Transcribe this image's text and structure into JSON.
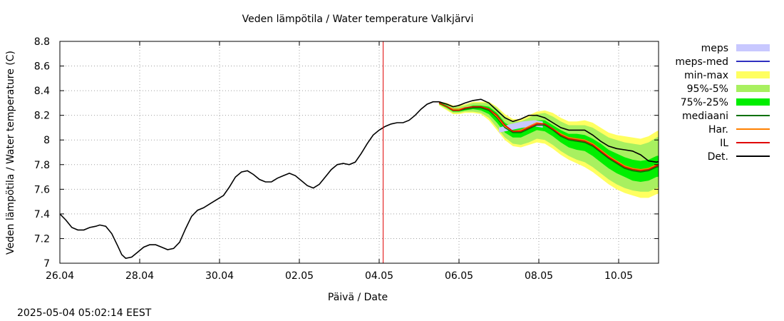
{
  "title": "Veden lämpötila / Water temperature Valkjärvi",
  "xlabel": "Päivä / Date",
  "ylabel": "Veden lämpötila / Water temperature (C)",
  "timestamp": "2025-05-04 05:02:14 EEST",
  "chart_data": {
    "type": "line",
    "title": "Veden lämpötila / Water temperature Valkjärvi",
    "xlabel": "Päivä / Date",
    "ylabel": "Veden lämpötila / Water temperature (C)",
    "x_unit": "days since 26.04 00:00",
    "xlim": [
      0,
      15
    ],
    "ylim": [
      7.0,
      8.8
    ],
    "grid": true,
    "legend_position": "right",
    "forecast_marker_x": 8.1,
    "x_ticks": [
      {
        "x": 0,
        "label": "26.04"
      },
      {
        "x": 2,
        "label": "28.04"
      },
      {
        "x": 4,
        "label": "30.04"
      },
      {
        "x": 6,
        "label": "02.05"
      },
      {
        "x": 8,
        "label": "04.05"
      },
      {
        "x": 10,
        "label": "06.05"
      },
      {
        "x": 12,
        "label": "08.05"
      },
      {
        "x": 14,
        "label": "10.05"
      }
    ],
    "y_ticks": [
      {
        "y": 7.0,
        "label": "7"
      },
      {
        "y": 7.2,
        "label": "7.2"
      },
      {
        "y": 7.4,
        "label": "7.4"
      },
      {
        "y": 7.6,
        "label": "7.6"
      },
      {
        "y": 7.8,
        "label": "7.8"
      },
      {
        "y": 8.0,
        "label": "8"
      },
      {
        "y": 8.2,
        "label": "8.2"
      },
      {
        "y": 8.4,
        "label": "8.4"
      },
      {
        "y": 8.6,
        "label": "8.6"
      },
      {
        "y": 8.8,
        "label": "8.8"
      }
    ],
    "legend": [
      {
        "label": "meps",
        "color": "#c8c8ff",
        "kind": "band"
      },
      {
        "label": "meps-med",
        "color": "#3030c0",
        "kind": "line"
      },
      {
        "label": "min-max",
        "color": "#ffff60",
        "kind": "band"
      },
      {
        "label": "95%-5%",
        "color": "#a8f060",
        "kind": "band"
      },
      {
        "label": "75%-25%",
        "color": "#00ee00",
        "kind": "band"
      },
      {
        "label": "mediaani",
        "color": "#007000",
        "kind": "line"
      },
      {
        "label": "Har.",
        "color": "#ff8000",
        "kind": "line"
      },
      {
        "label": "IL",
        "color": "#e00000",
        "kind": "line"
      },
      {
        "label": "Det.",
        "color": "#000000",
        "kind": "line"
      }
    ],
    "series": {
      "observed": {
        "name": "Det.",
        "color": "#000000",
        "points": [
          [
            0.0,
            7.4
          ],
          [
            0.15,
            7.35
          ],
          [
            0.3,
            7.29
          ],
          [
            0.45,
            7.27
          ],
          [
            0.6,
            7.27
          ],
          [
            0.75,
            7.29
          ],
          [
            0.9,
            7.3
          ],
          [
            1.0,
            7.31
          ],
          [
            1.15,
            7.3
          ],
          [
            1.3,
            7.24
          ],
          [
            1.45,
            7.14
          ],
          [
            1.55,
            7.07
          ],
          [
            1.65,
            7.04
          ],
          [
            1.8,
            7.05
          ],
          [
            1.95,
            7.09
          ],
          [
            2.1,
            7.13
          ],
          [
            2.25,
            7.15
          ],
          [
            2.4,
            7.15
          ],
          [
            2.55,
            7.13
          ],
          [
            2.7,
            7.11
          ],
          [
            2.85,
            7.12
          ],
          [
            3.0,
            7.17
          ],
          [
            3.15,
            7.28
          ],
          [
            3.3,
            7.38
          ],
          [
            3.45,
            7.43
          ],
          [
            3.6,
            7.45
          ],
          [
            3.8,
            7.49
          ],
          [
            3.95,
            7.52
          ],
          [
            4.1,
            7.55
          ],
          [
            4.25,
            7.62
          ],
          [
            4.4,
            7.7
          ],
          [
            4.55,
            7.74
          ],
          [
            4.7,
            7.75
          ],
          [
            4.85,
            7.72
          ],
          [
            5.0,
            7.68
          ],
          [
            5.15,
            7.66
          ],
          [
            5.3,
            7.66
          ],
          [
            5.45,
            7.69
          ],
          [
            5.6,
            7.71
          ],
          [
            5.75,
            7.73
          ],
          [
            5.9,
            7.71
          ],
          [
            6.05,
            7.67
          ],
          [
            6.2,
            7.63
          ],
          [
            6.35,
            7.61
          ],
          [
            6.5,
            7.64
          ],
          [
            6.65,
            7.7
          ],
          [
            6.8,
            7.76
          ],
          [
            6.95,
            7.8
          ],
          [
            7.1,
            7.81
          ],
          [
            7.25,
            7.8
          ],
          [
            7.4,
            7.82
          ],
          [
            7.55,
            7.89
          ],
          [
            7.7,
            7.97
          ],
          [
            7.85,
            8.04
          ],
          [
            8.0,
            8.08
          ],
          [
            8.15,
            8.11
          ],
          [
            8.3,
            8.13
          ],
          [
            8.45,
            8.14
          ],
          [
            8.6,
            8.14
          ],
          [
            8.75,
            8.16
          ],
          [
            8.9,
            8.2
          ],
          [
            9.05,
            8.25
          ],
          [
            9.2,
            8.29
          ],
          [
            9.35,
            8.31
          ],
          [
            9.5,
            8.31
          ]
        ]
      },
      "forecast": {
        "x": [
          9.5,
          9.7,
          9.85,
          10.0,
          10.15,
          10.35,
          10.55,
          10.75,
          10.95,
          11.15,
          11.35,
          11.55,
          11.75,
          11.95,
          12.15,
          12.35,
          12.55,
          12.75,
          12.95,
          13.15,
          13.35,
          13.55,
          13.75,
          13.95,
          14.15,
          14.35,
          14.55,
          14.75,
          14.95,
          15.15,
          15.35,
          15.55,
          15.7
        ],
        "det": [
          8.31,
          8.29,
          8.27,
          8.28,
          8.3,
          8.32,
          8.33,
          8.3,
          8.24,
          8.18,
          8.15,
          8.17,
          8.2,
          8.2,
          8.18,
          8.14,
          8.1,
          8.08,
          8.08,
          8.08,
          8.04,
          7.99,
          7.95,
          7.93,
          7.92,
          7.91,
          7.88,
          7.83,
          7.82,
          7.84,
          7.87,
          7.89,
          7.87
        ],
        "il": [
          8.3,
          8.27,
          8.24,
          8.24,
          8.26,
          8.27,
          8.27,
          8.25,
          8.2,
          8.12,
          8.07,
          8.07,
          8.1,
          8.13,
          8.13,
          8.09,
          8.04,
          8.01,
          8.0,
          7.99,
          7.96,
          7.91,
          7.86,
          7.82,
          7.78,
          7.76,
          7.75,
          7.76,
          7.79,
          7.8,
          7.8,
          7.76,
          7.74
        ],
        "har": [
          8.3,
          8.27,
          8.25,
          8.25,
          8.26,
          8.27,
          8.27,
          8.25,
          8.19,
          8.11,
          8.07,
          8.08,
          8.11,
          8.14,
          8.13,
          8.09,
          8.05,
          8.02,
          8.01,
          8.0,
          7.97,
          7.92,
          7.87,
          7.83,
          7.79,
          7.77,
          7.76,
          7.77,
          7.8,
          7.81,
          7.81,
          7.77,
          7.75
        ],
        "median": [
          8.3,
          8.27,
          8.24,
          8.24,
          8.25,
          8.26,
          8.26,
          8.24,
          8.18,
          8.1,
          8.06,
          8.06,
          8.09,
          8.12,
          8.12,
          8.08,
          8.03,
          8.0,
          7.99,
          7.98,
          7.95,
          7.9,
          7.85,
          7.81,
          7.77,
          7.75,
          7.74,
          7.75,
          7.78,
          7.79,
          7.79,
          7.75,
          7.73
        ],
        "p25": [
          8.29,
          8.26,
          8.23,
          8.23,
          8.24,
          8.25,
          8.24,
          8.21,
          8.14,
          8.06,
          8.02,
          8.02,
          8.05,
          8.08,
          8.07,
          8.03,
          7.98,
          7.94,
          7.92,
          7.91,
          7.87,
          7.82,
          7.77,
          7.73,
          7.7,
          7.67,
          7.66,
          7.67,
          7.7,
          7.71,
          7.71,
          7.66,
          7.64
        ],
        "p75": [
          8.31,
          8.28,
          8.25,
          8.25,
          8.26,
          8.28,
          8.28,
          8.27,
          8.22,
          8.14,
          8.1,
          8.1,
          8.13,
          8.16,
          8.16,
          8.12,
          8.08,
          8.05,
          8.05,
          8.04,
          8.01,
          7.97,
          7.92,
          7.89,
          7.86,
          7.84,
          7.83,
          7.84,
          7.87,
          7.88,
          7.88,
          7.84,
          7.82
        ],
        "p5": [
          8.29,
          8.25,
          8.22,
          8.22,
          8.23,
          8.23,
          8.22,
          8.18,
          8.1,
          8.02,
          7.97,
          7.96,
          7.98,
          8.01,
          8.0,
          7.96,
          7.91,
          7.87,
          7.84,
          7.82,
          7.78,
          7.73,
          7.68,
          7.64,
          7.61,
          7.59,
          7.58,
          7.58,
          7.61,
          7.63,
          7.62,
          7.57,
          7.55
        ],
        "p95": [
          8.31,
          8.29,
          8.27,
          8.27,
          8.28,
          8.3,
          8.3,
          8.3,
          8.26,
          8.19,
          8.15,
          8.15,
          8.18,
          8.21,
          8.22,
          8.19,
          8.15,
          8.12,
          8.12,
          8.12,
          8.1,
          8.06,
          8.02,
          8.0,
          7.98,
          7.97,
          7.96,
          7.98,
          8.02,
          8.04,
          8.05,
          8.02,
          8.0
        ],
        "min": [
          8.28,
          8.24,
          8.21,
          8.21,
          8.22,
          8.22,
          8.21,
          8.16,
          8.08,
          8.0,
          7.95,
          7.94,
          7.96,
          7.98,
          7.97,
          7.93,
          7.88,
          7.84,
          7.81,
          7.78,
          7.74,
          7.69,
          7.64,
          7.6,
          7.57,
          7.55,
          7.53,
          7.53,
          7.56,
          7.58,
          7.57,
          7.52,
          7.5
        ],
        "max": [
          8.31,
          8.3,
          8.28,
          8.28,
          8.29,
          8.31,
          8.31,
          8.31,
          8.27,
          8.21,
          8.17,
          8.17,
          8.2,
          8.23,
          8.24,
          8.22,
          8.18,
          8.15,
          8.15,
          8.16,
          8.14,
          8.1,
          8.06,
          8.04,
          8.03,
          8.02,
          8.01,
          8.03,
          8.07,
          8.1,
          8.12,
          8.1,
          8.09
        ]
      },
      "meps": {
        "name": "meps",
        "color": "#c8c8ff",
        "upper": [
          [
            11.0,
            8.1
          ],
          [
            11.3,
            8.13
          ],
          [
            11.6,
            8.15
          ],
          [
            11.9,
            8.16
          ],
          [
            12.1,
            8.15
          ]
        ],
        "lower": [
          [
            11.0,
            8.06
          ],
          [
            11.3,
            8.08
          ],
          [
            11.6,
            8.1
          ],
          [
            11.9,
            8.11
          ],
          [
            12.1,
            8.1
          ]
        ]
      }
    }
  }
}
